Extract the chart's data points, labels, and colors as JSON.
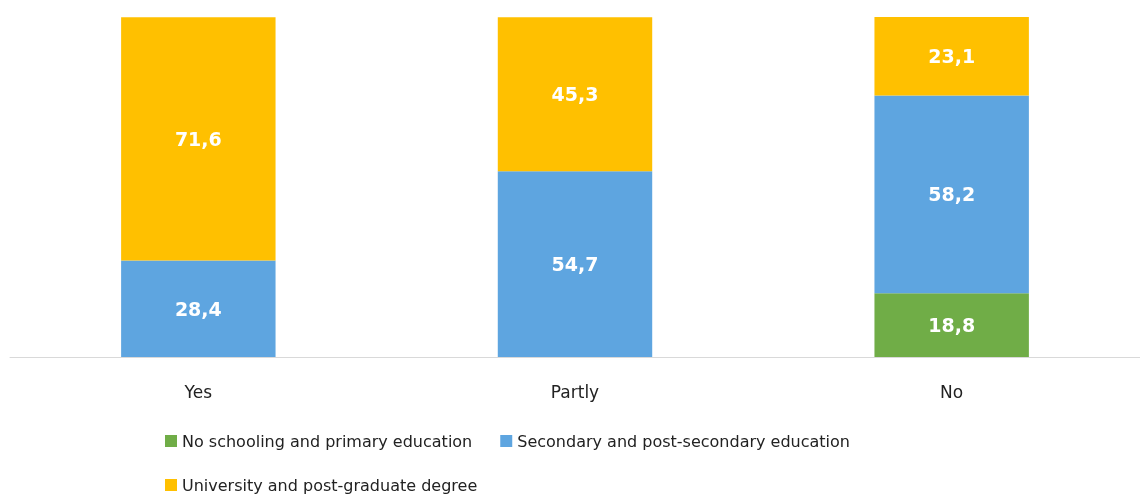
{
  "chart_data": {
    "type": "bar",
    "stacked": true,
    "categories": [
      "Yes",
      "Partly",
      "No"
    ],
    "series": [
      {
        "name": "No schooling and primary education",
        "color": "#70ad47",
        "values": [
          null,
          null,
          18.8
        ],
        "value_labels": [
          null,
          null,
          "18,8"
        ]
      },
      {
        "name": "Secondary and post-secondary education",
        "color": "#5ea5e0",
        "values": [
          28.4,
          54.7,
          58.2
        ],
        "value_labels": [
          "28,4",
          "54,7",
          "58,2"
        ]
      },
      {
        "name": "University and post-graduate degree",
        "color": "#ffc000",
        "values": [
          71.6,
          45.3,
          23.1
        ],
        "value_labels": [
          "71,6",
          "45,3",
          "23,1"
        ]
      }
    ],
    "legend": "bottom"
  }
}
